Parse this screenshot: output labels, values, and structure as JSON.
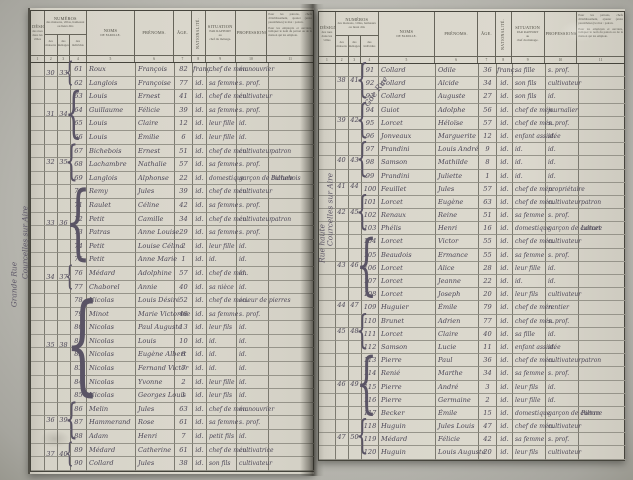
{
  "header": {
    "designation_title": "DÉSIGNATION",
    "designation_sub": "des rues dans les villes",
    "numeros_title": "NUMÉROS",
    "numeros_sub": "des maisons, villas, hameaux ou lieux dits",
    "sub_maisons": "des maisons",
    "sub_menages": "des ménages",
    "sub_individus": "des individus",
    "noms": "NOMS",
    "noms_sub": "DE FAMILLE.",
    "prenoms": "PRÉNOMS.",
    "age": "ÂGE.",
    "nationalite": "NATIONALITÉ.",
    "situation_l1": "SITUATION",
    "situation_l2": "PAR RAPPORT",
    "situation_l3": "au",
    "situation_l4": "chef du ménage.",
    "professions": "PROFESSIONS.",
    "notes_p1": "Pour les patrons, chefs d'établissement, ajouter (entre parenthèses) le mot : patron.",
    "notes_p2": "Pour les employés et ouvriers, indiquer le nom du patron ou de la maison qui les emploie.",
    "col_numbers": [
      "1",
      "2",
      "3",
      "4",
      "5",
      "6",
      "7",
      "8",
      "9",
      "10",
      "11"
    ]
  },
  "left_page": {
    "street": [
      "Courcelles sur Aire",
      "Grande Rue"
    ],
    "groups": [
      {
        "from": 0,
        "to": 1,
        "maison": "30",
        "menage": "33"
      },
      {
        "from": 2,
        "to": 5,
        "maison": "31",
        "menage": "34"
      },
      {
        "from": 6,
        "to": 8,
        "maison": "32",
        "menage": "35"
      },
      {
        "from": 9,
        "to": 14,
        "maison": "33",
        "menage": "36"
      },
      {
        "from": 15,
        "to": 16,
        "maison": "34",
        "menage": "37"
      },
      {
        "from": 17,
        "to": 24,
        "maison": "35",
        "menage": "38"
      },
      {
        "from": 25,
        "to": 27,
        "maison": "36",
        "menage": "39"
      },
      {
        "from": 28,
        "to": 29,
        "maison": "37",
        "menage": "40"
      }
    ],
    "rows": [
      {
        "num": "61",
        "nom": "Roux",
        "prenom": "François",
        "age": "82",
        "nat": "franç.",
        "situation": "chef de mén.",
        "profession": "manouvrier",
        "note": ""
      },
      {
        "num": "62",
        "nom": "Langlois",
        "prenom": "Françoise",
        "age": "77",
        "nat": "id.",
        "situation": "sa femme",
        "profession": "s. prof.",
        "note": ""
      },
      {
        "num": "63",
        "nom": "Louis",
        "prenom": "Ernest",
        "age": "41",
        "nat": "id.",
        "situation": "chef de mén.",
        "profession": "cultivateur",
        "note": ""
      },
      {
        "num": "64",
        "nom": "Guillaume",
        "prenom": "Félicie",
        "age": "39",
        "nat": "id.",
        "situation": "sa femme",
        "profession": "s. prof.",
        "note": ""
      },
      {
        "num": "65",
        "nom": "Louis",
        "prenom": "Claire",
        "age": "12",
        "nat": "id.",
        "situation": "leur fille",
        "profession": "id.",
        "note": ""
      },
      {
        "num": "66",
        "nom": "Louis",
        "prenom": "Émilie",
        "age": "6",
        "nat": "id.",
        "situation": "leur fille",
        "profession": "id.",
        "note": ""
      },
      {
        "num": "67",
        "nom": "Bichebois",
        "prenom": "Ernest",
        "age": "51",
        "nat": "id.",
        "situation": "chef de mén.",
        "profession": "cultivateur",
        "note": "patron"
      },
      {
        "num": "68",
        "nom": "Lachambre",
        "prenom": "Nathalie",
        "age": "57",
        "nat": "id.",
        "situation": "sa femme",
        "profession": "s. prof.",
        "note": ""
      },
      {
        "num": "69",
        "nom": "Langlois",
        "prenom": "Alphonse",
        "age": "22",
        "nat": "id.",
        "situation": "domestique",
        "profession": "garçon de culture",
        "note": "Bichebois"
      },
      {
        "num": "70",
        "nom": "Remy",
        "prenom": "Jules",
        "age": "39",
        "nat": "id.",
        "situation": "chef de mén.",
        "profession": "cultivateur",
        "note": ""
      },
      {
        "num": "71",
        "nom": "Raulet",
        "prenom": "Céline",
        "age": "42",
        "nat": "id.",
        "situation": "sa femme",
        "profession": "s. prof.",
        "note": ""
      },
      {
        "num": "72",
        "nom": "Petit",
        "prenom": "Camille",
        "age": "34",
        "nat": "id.",
        "situation": "chef de mén.",
        "profession": "cultivateur",
        "note": "patron"
      },
      {
        "num": "73",
        "nom": "Patras",
        "prenom": "Anne Louise",
        "age": "29",
        "nat": "id.",
        "situation": "sa femme",
        "profession": "s. prof.",
        "note": ""
      },
      {
        "num": "74",
        "nom": "Petit",
        "prenom": "Louise Célina",
        "age": "2",
        "nat": "id.",
        "situation": "leur fille",
        "profession": "id.",
        "note": ""
      },
      {
        "num": "75",
        "nom": "Petit",
        "prenom": "Anne Marie",
        "age": "1",
        "nat": "id.",
        "situation": "id.",
        "profession": "id.",
        "note": ""
      },
      {
        "num": "76",
        "nom": "Médard",
        "prenom": "Adolphine",
        "age": "57",
        "nat": "id.",
        "situation": "chef de mén.",
        "profession": "id.",
        "note": ""
      },
      {
        "num": "77",
        "nom": "Chaborel",
        "prenom": "Annie",
        "age": "40",
        "nat": "id.",
        "situation": "sa nièce",
        "profession": "id.",
        "note": ""
      },
      {
        "num": "78",
        "nom": "Nicolas",
        "prenom": "Louis Désiré",
        "age": "52",
        "nat": "id.",
        "situation": "chef de mén.",
        "profession": "scieur de pierres",
        "note": ""
      },
      {
        "num": "79",
        "nom": "Minot",
        "prenom": "Marie Victorine",
        "age": "48",
        "nat": "id.",
        "situation": "sa femme",
        "profession": "s. prof.",
        "note": ""
      },
      {
        "num": "80",
        "nom": "Nicolas",
        "prenom": "Paul Auguste",
        "age": "13",
        "nat": "id.",
        "situation": "leur fils",
        "profession": "id.",
        "note": ""
      },
      {
        "num": "81",
        "nom": "Nicolas",
        "prenom": "Louis",
        "age": "10",
        "nat": "id.",
        "situation": "id.",
        "profession": "id.",
        "note": ""
      },
      {
        "num": "82",
        "nom": "Nicolas",
        "prenom": "Eugène Albert",
        "age": "8",
        "nat": "id.",
        "situation": "id.",
        "profession": "id.",
        "note": ""
      },
      {
        "num": "83",
        "nom": "Nicolas",
        "prenom": "Fernand Victor",
        "age": "7",
        "nat": "id.",
        "situation": "id.",
        "profession": "id.",
        "note": ""
      },
      {
        "num": "84",
        "nom": "Nicolas",
        "prenom": "Yvonne",
        "age": "2",
        "nat": "id.",
        "situation": "leur fille",
        "profession": "id.",
        "note": ""
      },
      {
        "num": "85",
        "nom": "Nicolas",
        "prenom": "Georges Louis",
        "age": "1",
        "nat": "id.",
        "situation": "leur fils",
        "profession": "id.",
        "note": ""
      },
      {
        "num": "86",
        "nom": "Melin",
        "prenom": "Jules",
        "age": "63",
        "nat": "id.",
        "situation": "chef de mén.",
        "profession": "manouvrier",
        "note": ""
      },
      {
        "num": "87",
        "nom": "Hammerand",
        "prenom": "Rose",
        "age": "61",
        "nat": "id.",
        "situation": "sa femme",
        "profession": "s. prof.",
        "note": ""
      },
      {
        "num": "88",
        "nom": "Adam",
        "prenom": "Henri",
        "age": "7",
        "nat": "id.",
        "situation": "petit fils",
        "profession": "id.",
        "note": ""
      },
      {
        "num": "89",
        "nom": "Médard",
        "prenom": "Catherine",
        "age": "61",
        "nat": "id.",
        "situation": "chef de mén.",
        "profession": "cultivatrice",
        "note": ""
      },
      {
        "num": "90",
        "nom": "Collard",
        "prenom": "Jules",
        "age": "38",
        "nat": "id.",
        "situation": "son fils",
        "profession": "cultivateur",
        "note": ""
      }
    ]
  },
  "right_page": {
    "street": [
      "Gde Rue",
      "Courcelles sur Aire",
      "Rue haute"
    ],
    "groups": [
      {
        "from": 0,
        "to": 2,
        "maison": "38",
        "menage": "41"
      },
      {
        "from": 3,
        "to": 5,
        "maison": "39",
        "menage": "42"
      },
      {
        "from": 6,
        "to": 8,
        "maison": "40",
        "menage": "43"
      },
      {
        "from": 9,
        "to": 9,
        "maison": "41",
        "menage": "44"
      },
      {
        "from": 10,
        "to": 12,
        "maison": "42",
        "menage": "45"
      },
      {
        "from": 13,
        "to": 17,
        "maison": "43",
        "menage": "46"
      },
      {
        "from": 18,
        "to": 18,
        "maison": "44",
        "menage": "47"
      },
      {
        "from": 19,
        "to": 21,
        "maison": "45",
        "menage": "48"
      },
      {
        "from": 22,
        "to": 26,
        "maison": "46",
        "menage": "49"
      },
      {
        "from": 27,
        "to": 29,
        "maison": "47",
        "menage": "50"
      }
    ],
    "rows": [
      {
        "num": "91",
        "nom": "Collard",
        "prenom": "Odile",
        "age": "36",
        "nat": "franç.",
        "situation": "sa fille",
        "profession": "s. prof.",
        "note": ""
      },
      {
        "num": "92",
        "nom": "Collard",
        "prenom": "Alcide",
        "age": "34",
        "nat": "id.",
        "situation": "son fils",
        "profession": "cultivateur",
        "note": ""
      },
      {
        "num": "93",
        "nom": "Collard",
        "prenom": "Auguste",
        "age": "27",
        "nat": "id.",
        "situation": "son fils",
        "profession": "id.",
        "note": ""
      },
      {
        "num": "94",
        "nom": "Guiot",
        "prenom": "Adolphe",
        "age": "56",
        "nat": "id.",
        "situation": "chef de mén.",
        "profession": "journalier",
        "note": ""
      },
      {
        "num": "95",
        "nom": "Lorcet",
        "prenom": "Héloïse",
        "age": "57",
        "nat": "id.",
        "situation": "chef de mén.",
        "profession": "s. prof.",
        "note": ""
      },
      {
        "num": "96",
        "nom": "Jonveaux",
        "prenom": "Marguerite",
        "age": "12",
        "nat": "id.",
        "situation": "enfant assistée",
        "profession": "id.",
        "note": ""
      },
      {
        "num": "97",
        "nom": "Prandini",
        "prenom": "Louis André",
        "age": "9",
        "nat": "id.",
        "situation": "id.",
        "profession": "id.",
        "note": ""
      },
      {
        "num": "98",
        "nom": "Samson",
        "prenom": "Mathilde",
        "age": "8",
        "nat": "id.",
        "situation": "id.",
        "profession": "id.",
        "note": ""
      },
      {
        "num": "99",
        "nom": "Prandini",
        "prenom": "Juliette",
        "age": "1",
        "nat": "id.",
        "situation": "id.",
        "profession": "id.",
        "note": ""
      },
      {
        "num": "100",
        "nom": "Feuillet",
        "prenom": "Jules",
        "age": "57",
        "nat": "id.",
        "situation": "chef de mén.",
        "profession": "propriétaire",
        "note": ""
      },
      {
        "num": "101",
        "nom": "Lorcet",
        "prenom": "Eugène",
        "age": "63",
        "nat": "id.",
        "situation": "chef de mén.",
        "profession": "cultivateur",
        "note": "patron"
      },
      {
        "num": "102",
        "nom": "Renaux",
        "prenom": "Reine",
        "age": "51",
        "nat": "id.",
        "situation": "sa femme",
        "profession": "s. prof.",
        "note": ""
      },
      {
        "num": "103",
        "nom": "Phélis",
        "prenom": "Henri",
        "age": "16",
        "nat": "id.",
        "situation": "domestique",
        "profession": "garçon de culture",
        "note": "Lorcet"
      },
      {
        "num": "104",
        "nom": "Lorcet",
        "prenom": "Victor",
        "age": "55",
        "nat": "id.",
        "situation": "chef de mén.",
        "profession": "cultivateur",
        "note": ""
      },
      {
        "num": "105",
        "nom": "Beaudois",
        "prenom": "Ermance",
        "age": "55",
        "nat": "id.",
        "situation": "sa femme",
        "profession": "s. prof.",
        "note": ""
      },
      {
        "num": "106",
        "nom": "Lorcet",
        "prenom": "Alice",
        "age": "28",
        "nat": "id.",
        "situation": "leur fille",
        "profession": "id.",
        "note": ""
      },
      {
        "num": "107",
        "nom": "Lorcet",
        "prenom": "Jeanne",
        "age": "22",
        "nat": "id.",
        "situation": "id.",
        "profession": "id.",
        "note": ""
      },
      {
        "num": "108",
        "nom": "Lorcet",
        "prenom": "Joseph",
        "age": "20",
        "nat": "id.",
        "situation": "leur fils",
        "profession": "cultivateur",
        "note": ""
      },
      {
        "num": "109",
        "nom": "Huguier",
        "prenom": "Émile",
        "age": "79",
        "nat": "id.",
        "situation": "chef de mén.",
        "profession": "rentier",
        "note": ""
      },
      {
        "num": "110",
        "nom": "Brunet",
        "prenom": "Adrien",
        "age": "77",
        "nat": "id.",
        "situation": "chef de mén.",
        "profession": "s. prof.",
        "note": ""
      },
      {
        "num": "111",
        "nom": "Lorcet",
        "prenom": "Claire",
        "age": "40",
        "nat": "id.",
        "situation": "sa fille",
        "profession": "id.",
        "note": ""
      },
      {
        "num": "112",
        "nom": "Samson",
        "prenom": "Lucie",
        "age": "11",
        "nat": "id.",
        "situation": "enfant assistée",
        "profession": "id.",
        "note": ""
      },
      {
        "num": "113",
        "nom": "Pierre",
        "prenom": "Paul",
        "age": "36",
        "nat": "id.",
        "situation": "chef de mén.",
        "profession": "cultivateur",
        "note": "patron"
      },
      {
        "num": "114",
        "nom": "Renié",
        "prenom": "Marthe",
        "age": "34",
        "nat": "id.",
        "situation": "sa femme",
        "profession": "s. prof.",
        "note": ""
      },
      {
        "num": "115",
        "nom": "Pierre",
        "prenom": "André",
        "age": "3",
        "nat": "id.",
        "situation": "leur fils",
        "profession": "id.",
        "note": ""
      },
      {
        "num": "116",
        "nom": "Pierre",
        "prenom": "Germaine",
        "age": "2",
        "nat": "id.",
        "situation": "leur fille",
        "profession": "id.",
        "note": ""
      },
      {
        "num": "117",
        "nom": "Becker",
        "prenom": "Émile",
        "age": "15",
        "nat": "id.",
        "situation": "domestique",
        "profession": "garçon de culture",
        "note": "Pierre"
      },
      {
        "num": "118",
        "nom": "Huguin",
        "prenom": "Jules Louis",
        "age": "47",
        "nat": "id.",
        "situation": "chef de mén.",
        "profession": "cultivateur",
        "note": ""
      },
      {
        "num": "119",
        "nom": "Médard",
        "prenom": "Félicie",
        "age": "42",
        "nat": "id.",
        "situation": "sa femme",
        "profession": "s. prof.",
        "note": ""
      },
      {
        "num": "120",
        "nom": "Huguin",
        "prenom": "Louis Auguste",
        "age": "20",
        "nat": "id.",
        "situation": "leur fils",
        "profession": "cultivateur",
        "note": ""
      }
    ]
  }
}
